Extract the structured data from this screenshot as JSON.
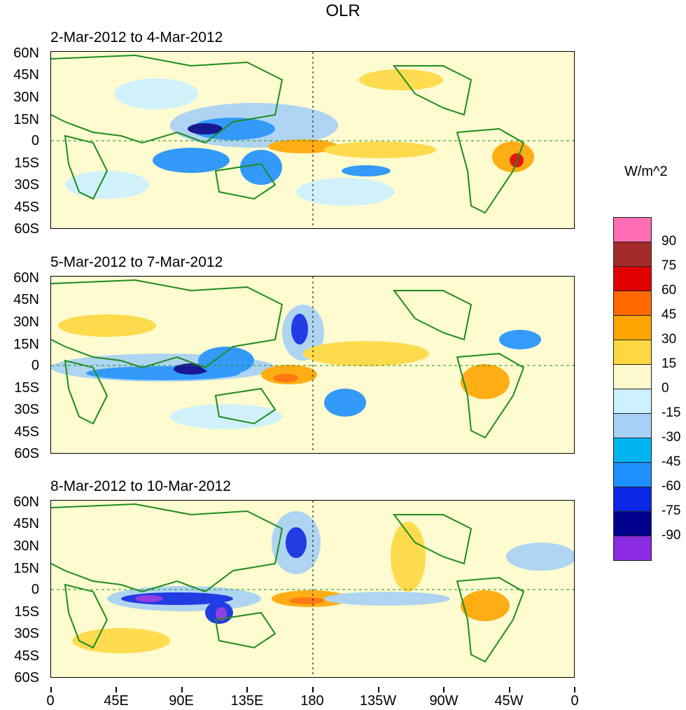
{
  "title": "OLR",
  "panels": [
    {
      "label": "2-Mar-2012 to 4-Mar-2012"
    },
    {
      "label": "5-Mar-2012 to 7-Mar-2012"
    },
    {
      "label": "8-Mar-2012 to 10-Mar-2012"
    }
  ],
  "y_ticks": [
    "60N",
    "45N",
    "30N",
    "15N",
    "0",
    "15S",
    "30S",
    "45S",
    "60S"
  ],
  "x_ticks": [
    "0",
    "45E",
    "90E",
    "135E",
    "180",
    "135W",
    "90W",
    "45W",
    "0"
  ],
  "colorbar": {
    "units": "W/m^2",
    "labels": [
      "90",
      "75",
      "60",
      "45",
      "30",
      "15",
      "0",
      "-15",
      "-30",
      "-45",
      "-60",
      "-75",
      "-90"
    ],
    "colors": [
      "#ff6eb4",
      "#a52a2a",
      "#e00000",
      "#ff6a00",
      "#ffa500",
      "#ffd740",
      "#fffacd",
      "#ccf0ff",
      "#a6d0f5",
      "#00b4f0",
      "#1e90ff",
      "#0a28e6",
      "#00008c",
      "#8a2be2"
    ]
  },
  "palette": {
    "land_outline": "#1e8c1e",
    "ocean_base": "#fdfbcf"
  }
}
